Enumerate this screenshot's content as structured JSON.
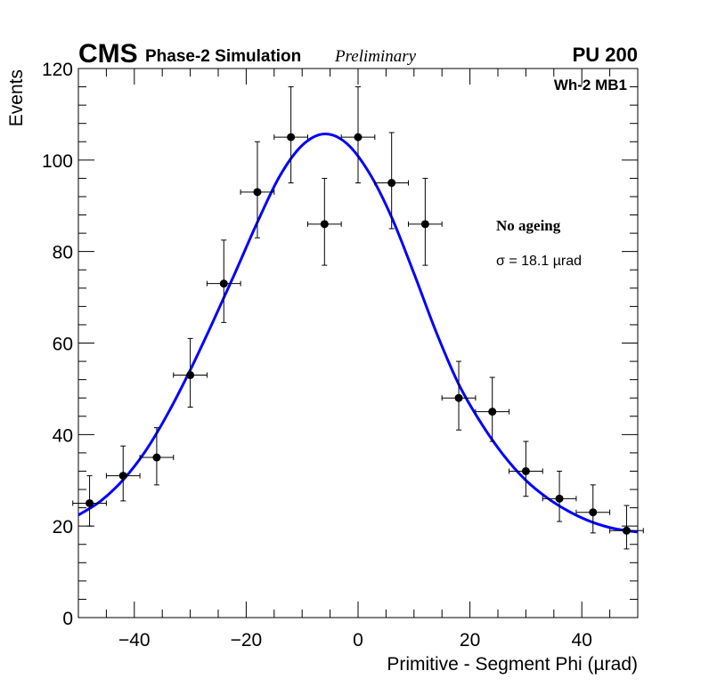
{
  "chart_data": {
    "type": "scatter",
    "experiment": "CMS",
    "subtitle": "Phase-2 Simulation",
    "status": "Preliminary",
    "pileup": "PU 200",
    "region": "Wh-2 MB1",
    "annotation": "No ageing",
    "sigma_label": "σ = 18.1 µrad",
    "xlabel": "Primitive - Segment Phi (µrad)",
    "ylabel": "Events",
    "xlim": [
      -50,
      50
    ],
    "ylim": [
      0,
      120
    ],
    "x_ticks": [
      -40,
      -20,
      0,
      20,
      40
    ],
    "y_ticks": [
      0,
      20,
      40,
      60,
      80,
      100,
      120
    ],
    "bin_half_width": 3,
    "series": [
      {
        "name": "data",
        "x": [
          -48,
          -42,
          -36,
          -30,
          -24,
          -18,
          -12,
          -6,
          0,
          6,
          12,
          18,
          24,
          30,
          36,
          42,
          48
        ],
        "y": [
          25,
          31,
          35,
          53,
          73,
          93,
          105,
          86,
          105,
          95,
          86,
          48,
          45,
          32,
          26,
          23,
          19
        ],
        "yerr_up": [
          6,
          6.5,
          6.5,
          8,
          9.5,
          11,
          11,
          10,
          11,
          11,
          10,
          8,
          7.5,
          6.5,
          6,
          6,
          5.5
        ],
        "yerr_down": [
          5,
          5.5,
          6,
          7,
          8.5,
          10,
          10,
          9,
          10,
          10,
          9,
          7,
          6.5,
          5.5,
          5,
          4.5,
          4
        ]
      },
      {
        "name": "fit",
        "type": "line",
        "color": "#0000ff",
        "x": [
          -50,
          -46,
          -42,
          -38,
          -34,
          -30,
          -26,
          -22,
          -18,
          -14,
          -10,
          -6,
          -2,
          2,
          6,
          10,
          14,
          18,
          22,
          26,
          30,
          34,
          38,
          42,
          46,
          50
        ],
        "y": [
          22.4,
          25.5,
          30.1,
          36.4,
          44.6,
          54.1,
          64.5,
          75.3,
          86.4,
          96.5,
          103.2,
          105.7,
          103.6,
          97.2,
          87.5,
          75.2,
          62.3,
          51.0,
          42.5,
          35.5,
          30.0,
          26.0,
          23.0,
          20.8,
          19.4,
          18.7
        ]
      }
    ]
  }
}
